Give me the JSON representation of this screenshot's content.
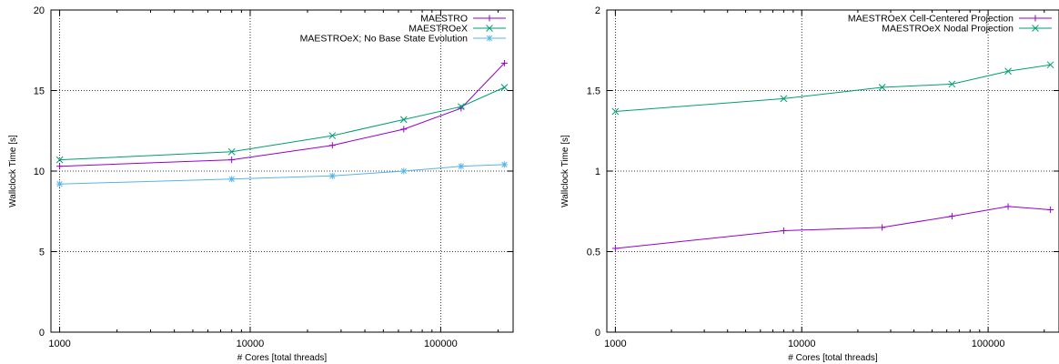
{
  "chart_data": [
    {
      "type": "line",
      "xlabel": "# Cores [total threads]",
      "ylabel": "Wallclock Time [s]",
      "xscale": "log",
      "xlim": [
        900,
        240000
      ],
      "ylim": [
        0,
        20
      ],
      "xticks": [
        1000,
        10000,
        100000
      ],
      "xtick_labels": [
        "1000",
        "10000",
        "100000"
      ],
      "yticks": [
        0,
        5,
        10,
        15,
        20
      ],
      "ytick_labels": [
        "0",
        "5",
        "10",
        "15",
        "20"
      ],
      "grid": true,
      "legend_position": "top-right",
      "series": [
        {
          "name": "MAESTRO",
          "color": "#9400d3",
          "marker": "plus",
          "x": [
            1000,
            8000,
            27000,
            64000,
            128000,
            216000
          ],
          "y": [
            10.3,
            10.7,
            11.6,
            12.6,
            13.9,
            16.7
          ]
        },
        {
          "name": "MAESTROeX",
          "color": "#009e73",
          "marker": "cross",
          "x": [
            1000,
            8000,
            27000,
            64000,
            128000,
            216000
          ],
          "y": [
            10.7,
            11.2,
            12.2,
            13.2,
            14.0,
            15.2
          ]
        },
        {
          "name": "MAESTROeX; No Base State Evolution",
          "color": "#56b4e9",
          "marker": "star",
          "x": [
            1000,
            8000,
            27000,
            64000,
            128000,
            216000
          ],
          "y": [
            9.2,
            9.5,
            9.7,
            10.0,
            10.3,
            10.4
          ]
        }
      ]
    },
    {
      "type": "line",
      "xlabel": "# Cores [total threads]",
      "ylabel": "Wallclock Time [s]",
      "xscale": "log",
      "xlim": [
        900,
        240000
      ],
      "ylim": [
        0,
        2
      ],
      "xticks": [
        1000,
        10000,
        100000
      ],
      "xtick_labels": [
        "1000",
        "10000",
        "100000"
      ],
      "yticks": [
        0,
        0.5,
        1,
        1.5,
        2
      ],
      "ytick_labels": [
        "0",
        "0.5",
        "1",
        "1.5",
        "2"
      ],
      "grid": true,
      "legend_position": "top-right",
      "series": [
        {
          "name": "MAESTROeX Cell-Centered Projection",
          "color": "#9400d3",
          "marker": "plus",
          "x": [
            1000,
            8000,
            27000,
            64000,
            128000,
            216000
          ],
          "y": [
            0.52,
            0.63,
            0.65,
            0.72,
            0.78,
            0.76
          ]
        },
        {
          "name": "MAESTROeX Nodal Projection",
          "color": "#009e73",
          "marker": "cross",
          "x": [
            1000,
            8000,
            27000,
            64000,
            128000,
            216000
          ],
          "y": [
            1.37,
            1.45,
            1.52,
            1.54,
            1.62,
            1.66
          ]
        }
      ]
    }
  ]
}
